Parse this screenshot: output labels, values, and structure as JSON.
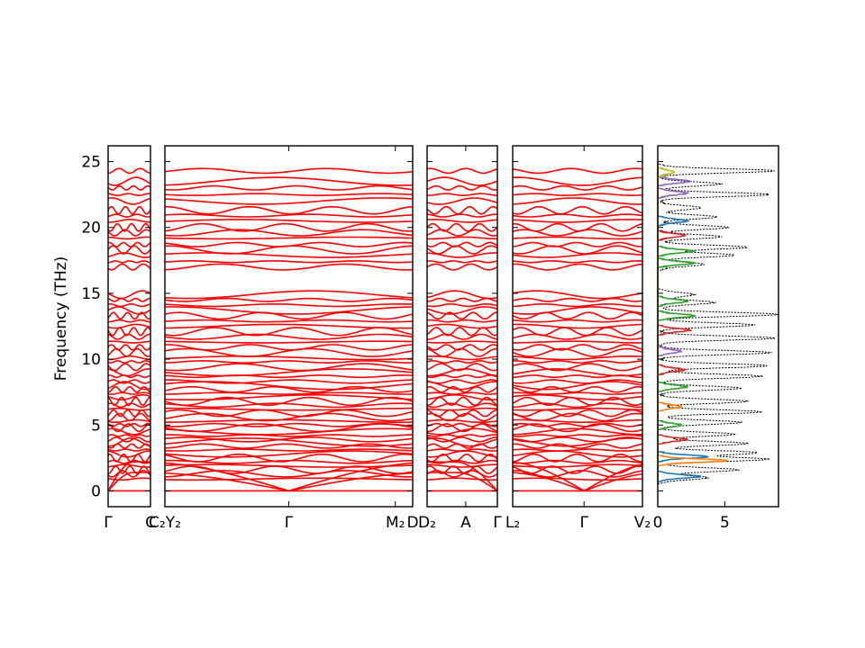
{
  "chart_data": {
    "type": "line",
    "title": "",
    "ylabel": "Frequency (THz)",
    "ylim": [
      -1.2,
      26.2
    ],
    "y_ticks": [
      0,
      5,
      10,
      15,
      20,
      25
    ],
    "line_color": "#ff0000",
    "zero_line_color": "#0000cc",
    "band_panels": [
      {
        "x_ticks": [
          {
            "label": "Γ",
            "pos": 0
          },
          {
            "label": "C",
            "pos": 1
          }
        ]
      },
      {
        "x_ticks": [
          {
            "label": "C₂Y₂",
            "pos": 0
          },
          {
            "label": "Γ",
            "pos": 0.5
          },
          {
            "label": "M₂",
            "pos": 0.93
          },
          {
            "label": "D",
            "pos": 1
          }
        ]
      },
      {
        "x_ticks": [
          {
            "label": "D₂",
            "pos": 0
          },
          {
            "label": "A",
            "pos": 0.55
          },
          {
            "label": "Γ",
            "pos": 1
          }
        ]
      },
      {
        "x_ticks": [
          {
            "label": "L₂",
            "pos": 0
          },
          {
            "label": "Γ",
            "pos": 0.55
          },
          {
            "label": "V₂",
            "pos": 1
          }
        ]
      }
    ],
    "band_frequencies_thz": [
      0.0,
      0.0,
      0.0,
      0.9,
      1.3,
      1.6,
      1.9,
      2.2,
      2.5,
      2.8,
      3.1,
      3.4,
      3.7,
      3.9,
      4.2,
      4.5,
      4.8,
      5.0,
      5.3,
      5.6,
      5.9,
      6.2,
      6.5,
      6.8,
      7.1,
      7.4,
      7.7,
      8.0,
      8.3,
      8.7,
      9.0,
      9.4,
      9.8,
      10.1,
      10.5,
      10.9,
      11.3,
      11.7,
      12.1,
      12.5,
      12.9,
      13.3,
      13.7,
      14.1,
      14.5,
      14.9,
      17.0,
      17.4,
      17.9,
      18.3,
      18.7,
      19.2,
      19.6,
      20.0,
      20.5,
      20.9,
      21.3,
      22.0,
      22.5,
      23.0,
      23.5,
      24.3
    ],
    "dos_panel": {
      "x_ticks": [
        0,
        5
      ],
      "xlim": [
        0,
        9
      ],
      "total_dos_color": "#000000",
      "partial_dos_colors": [
        "#1f77b4",
        "#ff7f0e",
        "#2ca02c",
        "#d62728",
        "#9467bd",
        "#8c564b",
        "#e377c2",
        "#bcbd22"
      ],
      "total_dos_peaks": [
        {
          "f": 1.0,
          "h": 3.5
        },
        {
          "f": 1.6,
          "h": 5.8
        },
        {
          "f": 2.4,
          "h": 8.0
        },
        {
          "f": 2.9,
          "h": 7.2
        },
        {
          "f": 3.6,
          "h": 6.5
        },
        {
          "f": 4.3,
          "h": 5.5
        },
        {
          "f": 5.2,
          "h": 6.0
        },
        {
          "f": 6.0,
          "h": 7.5
        },
        {
          "f": 6.8,
          "h": 6.5
        },
        {
          "f": 7.8,
          "h": 6.0
        },
        {
          "f": 8.7,
          "h": 7.5
        },
        {
          "f": 9.5,
          "h": 8.0
        },
        {
          "f": 10.5,
          "h": 8.2
        },
        {
          "f": 11.6,
          "h": 8.5
        },
        {
          "f": 12.6,
          "h": 7.0
        },
        {
          "f": 13.4,
          "h": 8.8
        },
        {
          "f": 14.3,
          "h": 4.0
        },
        {
          "f": 14.9,
          "h": 2.5
        },
        {
          "f": 17.2,
          "h": 3.2
        },
        {
          "f": 17.9,
          "h": 5.5
        },
        {
          "f": 18.5,
          "h": 6.5
        },
        {
          "f": 19.3,
          "h": 4.5
        },
        {
          "f": 20.0,
          "h": 5.0
        },
        {
          "f": 20.8,
          "h": 4.2
        },
        {
          "f": 21.5,
          "h": 3.0
        },
        {
          "f": 22.5,
          "h": 8.2
        },
        {
          "f": 23.3,
          "h": 4.5
        },
        {
          "f": 24.3,
          "h": 8.5
        }
      ],
      "partial_dos_peaks": [
        {
          "f": 1.1,
          "h": 3.0,
          "c": 0
        },
        {
          "f": 2.3,
          "h": 5.0,
          "c": 1
        },
        {
          "f": 2.6,
          "h": 3.5,
          "c": 0
        },
        {
          "f": 3.9,
          "h": 2.0,
          "c": 3
        },
        {
          "f": 5.0,
          "h": 1.5,
          "c": 2
        },
        {
          "f": 6.4,
          "h": 1.5,
          "c": 1
        },
        {
          "f": 7.9,
          "h": 2.0,
          "c": 2
        },
        {
          "f": 9.2,
          "h": 1.8,
          "c": 3
        },
        {
          "f": 10.6,
          "h": 1.5,
          "c": 4
        },
        {
          "f": 12.2,
          "h": 2.2,
          "c": 3
        },
        {
          "f": 13.3,
          "h": 2.5,
          "c": 2
        },
        {
          "f": 14.4,
          "h": 2.0,
          "c": 2
        },
        {
          "f": 17.3,
          "h": 2.5,
          "c": 2
        },
        {
          "f": 18.2,
          "h": 2.5,
          "c": 2
        },
        {
          "f": 19.4,
          "h": 1.8,
          "c": 3
        },
        {
          "f": 20.5,
          "h": 2.0,
          "c": 0
        },
        {
          "f": 22.6,
          "h": 2.0,
          "c": 4
        },
        {
          "f": 23.5,
          "h": 2.2,
          "c": 4
        },
        {
          "f": 24.2,
          "h": 1.0,
          "c": 7
        }
      ]
    }
  }
}
